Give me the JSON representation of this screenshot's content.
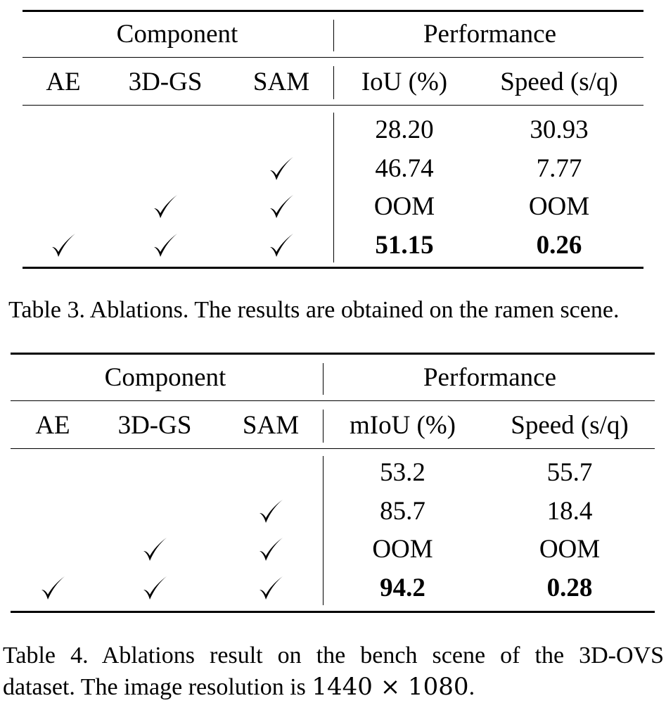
{
  "table3": {
    "group_headers": {
      "component": "Component",
      "performance": "Performance"
    },
    "columns": [
      "AE",
      "3D-GS",
      "SAM",
      "IoU (%)",
      "Speed (s/q)"
    ],
    "rows": [
      {
        "ae": false,
        "gs": false,
        "sam": false,
        "metric": "28.20",
        "speed": "30.93",
        "bold": false
      },
      {
        "ae": false,
        "gs": false,
        "sam": true,
        "metric": "46.74",
        "speed": "7.77",
        "bold": false
      },
      {
        "ae": false,
        "gs": true,
        "sam": true,
        "metric": "OOM",
        "speed": "OOM",
        "bold": false
      },
      {
        "ae": true,
        "gs": true,
        "sam": true,
        "metric": "51.15",
        "speed": "0.26",
        "bold": true
      }
    ],
    "caption": "Table 3. Ablations. The results are obtained on the ramen scene."
  },
  "table4": {
    "group_headers": {
      "component": "Component",
      "performance": "Performance"
    },
    "columns": [
      "AE",
      "3D-GS",
      "SAM",
      "mIoU (%)",
      "Speed (s/q)"
    ],
    "rows": [
      {
        "ae": false,
        "gs": false,
        "sam": false,
        "metric": "53.2",
        "speed": "55.7",
        "bold": false
      },
      {
        "ae": false,
        "gs": false,
        "sam": true,
        "metric": "85.7",
        "speed": "18.4",
        "bold": false
      },
      {
        "ae": false,
        "gs": true,
        "sam": true,
        "metric": "OOM",
        "speed": "OOM",
        "bold": false
      },
      {
        "ae": true,
        "gs": true,
        "sam": true,
        "metric": "94.2",
        "speed": "0.28",
        "bold": true
      }
    ],
    "caption_line1": "Table 4.  Ablations result on the bench scene of the 3D-OVS",
    "caption_line2_prefix": "dataset. The image resolution is ",
    "caption_line2_math": "1440 × 1080",
    "caption_line2_suffix": "."
  },
  "icons": {
    "checkmark": "check-icon"
  }
}
